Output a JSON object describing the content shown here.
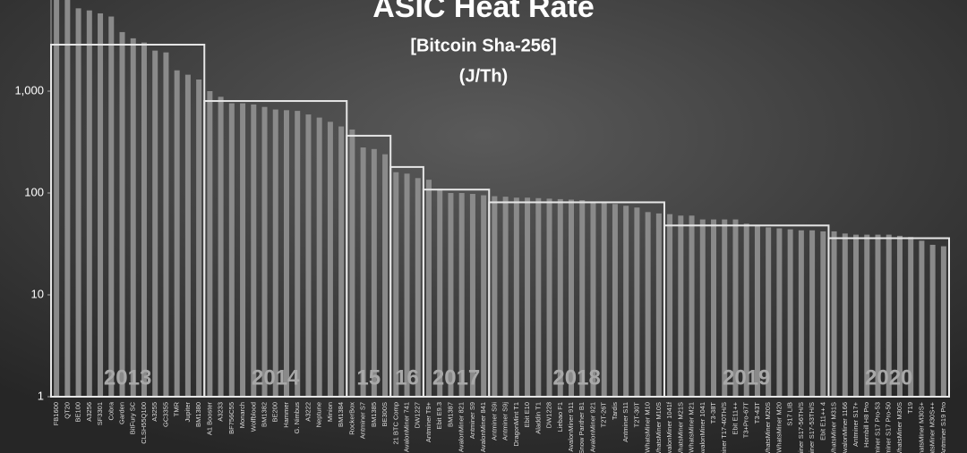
{
  "chart_data": {
    "type": "bar",
    "title": "ASIC Heat Rate",
    "subtitle": "[Bitcoin Sha-256]",
    "unit_label": "(J/Th)",
    "log_scale": true,
    "grid": false,
    "color": "#8a8a8a",
    "average_color": "#e6e6e6",
    "ylim": [
      1,
      10000
    ],
    "yticks": [
      1,
      10,
      100,
      {
        "value": 1000,
        "label": "1,000"
      }
    ],
    "groups": [
      {
        "label": "2013",
        "average": 2860,
        "categories": [
          "FB1600",
          "QT20",
          "BE100",
          "A3256",
          "SF3301",
          "Cobra",
          "Garden",
          "BitFury SC",
          "CLSH55Q100",
          "A3255",
          "GC3355",
          "TMR",
          "Jupiter",
          "BM1380"
        ],
        "values": [
          9000,
          9000,
          6500,
          6200,
          5800,
          5400,
          3800,
          3300,
          3000,
          2500,
          2400,
          1600,
          1450,
          1300
        ]
      },
      {
        "label": "2014",
        "average": 800,
        "categories": [
          "A1 Booster",
          "A3233",
          "BF756C55",
          "Monarch",
          "Wolfblood",
          "BM1382",
          "BE200",
          "Hammer",
          "G. Nimbus",
          "A3222",
          "Neptune",
          "Minion",
          "BM1384"
        ],
        "values": [
          1000,
          880,
          760,
          760,
          740,
          700,
          660,
          650,
          640,
          590,
          550,
          500,
          450
        ]
      },
      {
        "label": "15",
        "average": 365,
        "categories": [
          "RockerBox",
          "Antminer S7",
          "BM1385",
          "BE300S"
        ],
        "values": [
          420,
          280,
          270,
          240
        ]
      },
      {
        "label": "16",
        "average": 180,
        "categories": [
          "21 BTC Comp",
          "AvalonMiner 741",
          "DW1227"
        ],
        "values": [
          160,
          155,
          140
        ]
      },
      {
        "label": "2017",
        "average": 108,
        "categories": [
          "Antminer T9+",
          "Ebit E9.3",
          "BM1387",
          "AvalonMiner 821",
          "Antminer S9",
          "AvalonMiner 841"
        ],
        "values": [
          135,
          110,
          100,
          100,
          98,
          95
        ]
      },
      {
        "label": "2018",
        "average": 81,
        "categories": [
          "Antminer S9i",
          "Antminer S9j",
          "DragonMint T1",
          "Ebit E10",
          "Aladdin T1",
          "DW1228",
          "Liebao F1",
          "AvalonMiner 911",
          "Snow Panther B1",
          "AvalonMiner 921",
          "T2T-26T",
          "Tardis",
          "Antminer S11",
          "T2T-30T",
          "WhatsMiner M10",
          "WhatsMiner M10S"
        ],
        "values": [
          93,
          92,
          90,
          90,
          89,
          88,
          87,
          86,
          85,
          82,
          80,
          78,
          75,
          72,
          65,
          63
        ]
      },
      {
        "label": "2019",
        "average": 48,
        "categories": [
          "AvalonMiner 1041f",
          "WhatsMiner M21S",
          "WhatsMiner M21",
          "AvalonMiner 1041",
          "T3-38T",
          "Antminer T17-40TH/S",
          "Ebit E11++",
          "T3+Pro-67T",
          "T3-43T",
          "WhatsMiner M20S",
          "WhatsMiner M20",
          "S17 LIB",
          "Antminer S17-56TH/S",
          "Antminer S17-53TH/S",
          "Ebit E11++ 4"
        ],
        "values": [
          62,
          60,
          60,
          55,
          55,
          55,
          55,
          50,
          48,
          46,
          45,
          44,
          43,
          43,
          42
        ]
      },
      {
        "label": "2020",
        "average": 36,
        "categories": [
          "WhatsMiner M31S",
          "AvalonMiner 1166",
          "Antminer S17+",
          "Hornbill H8 Pro",
          "Antminer S17 Pro-53",
          "Antminer S17 Pro-50",
          "WhatsMiner M30S",
          "T19",
          "WhatsMiner M30S+",
          "WhatsMiner M30S++",
          "Antminer S19 Pro"
        ],
        "values": [
          42,
          40,
          39,
          39,
          39,
          39,
          38,
          37,
          34,
          31,
          30
        ]
      }
    ]
  }
}
